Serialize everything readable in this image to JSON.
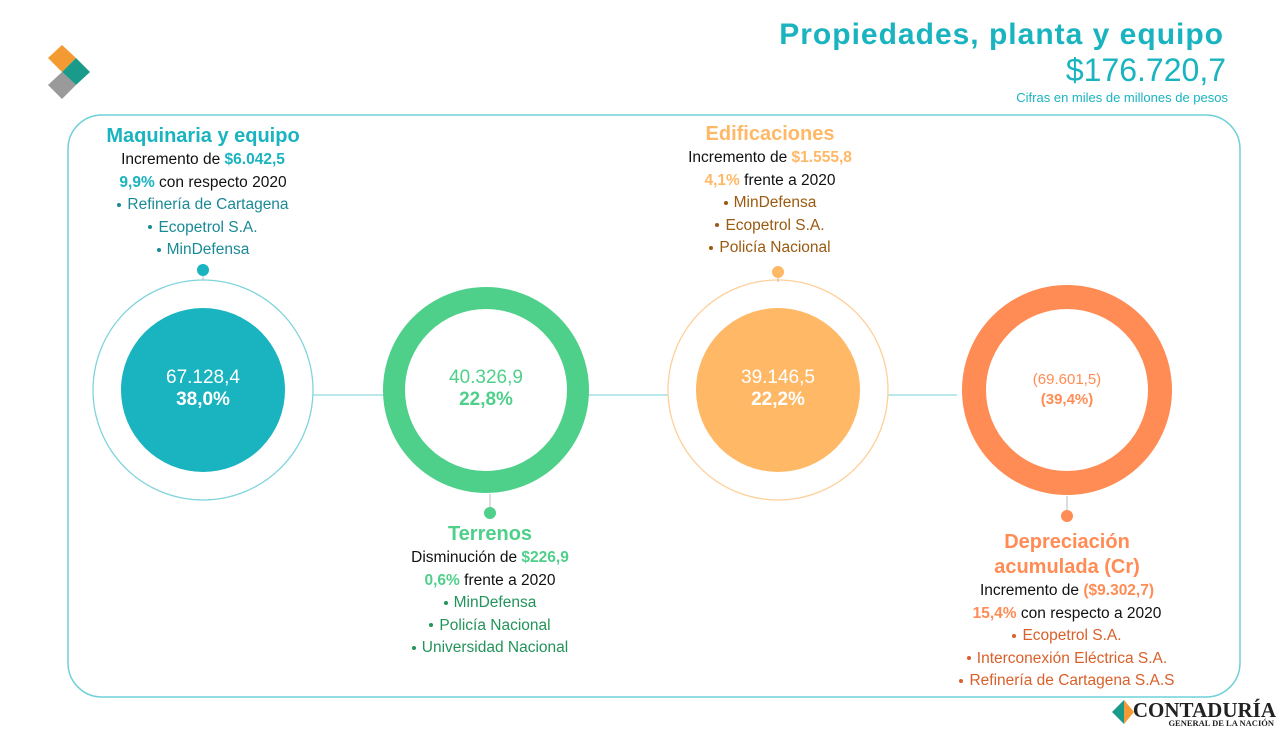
{
  "header": {
    "title": "Propiedades, planta y equipo",
    "total": "$176.720,7",
    "subtitle": "Cifras en miles de millones de pesos"
  },
  "items": [
    {
      "heading": "Maquinaria y equipo",
      "change": {
        "label": "Incremento de",
        "amount": "$6.042,5"
      },
      "pct": {
        "value": "9,9%",
        "rest": "con respecto 2020"
      },
      "entities": [
        "Refinería de Cartagena",
        "Ecopetrol S.A.",
        "MinDefensa"
      ],
      "value": "67.128,4",
      "share": "38,0%"
    },
    {
      "heading": "Terrenos",
      "change": {
        "label": "Disminución de",
        "amount": "$226,9"
      },
      "pct": {
        "value": "0,6%",
        "rest": "frente a 2020"
      },
      "entities": [
        "MinDefensa",
        "Policía Nacional",
        "Universidad  Nacional"
      ],
      "value": "40.326,9",
      "share": "22,8%"
    },
    {
      "heading": "Edificaciones",
      "change": {
        "label": "Incremento de",
        "amount": "$1.555,8"
      },
      "pct": {
        "value": "4,1%",
        "rest": "frente a 2020"
      },
      "entities": [
        "MinDefensa",
        "Ecopetrol S.A.",
        "Policía Nacional"
      ],
      "value": "39.146,5",
      "share": "22,2%"
    },
    {
      "heading": "Depreciación acumulada (Cr)",
      "change": {
        "label": "Incremento de",
        "amount": "($9.302,7)"
      },
      "pct": {
        "value": "15,4%",
        "rest": "con respecto  a 2020"
      },
      "entities": [
        "Ecopetrol S.A.",
        "Interconexión Eléctrica S.A.",
        "Refinería de Cartagena S.A.S"
      ],
      "value": "(69.601,5)",
      "share": "(39,4%)"
    }
  ],
  "footer": {
    "brand": "CONTADURÍA",
    "sub": "GENERAL DE LA NACIÓN"
  }
}
